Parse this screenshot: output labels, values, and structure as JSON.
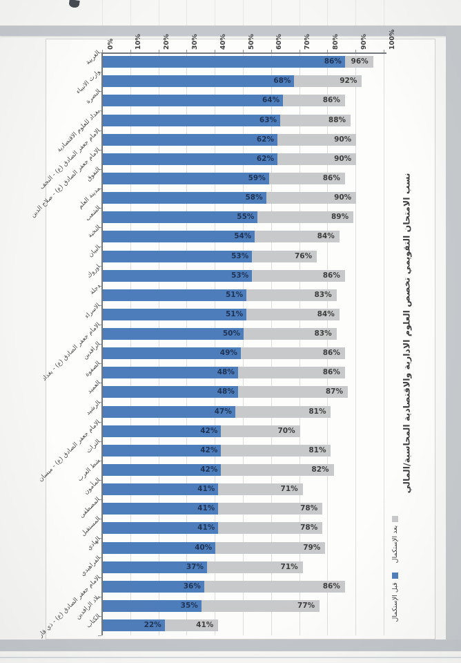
{
  "chart_data": {
    "type": "bar",
    "orientation": "horizontal-rotated-page",
    "title": "نسب الامتحان التقويمي تخصص العلوم الادارية والاقتصادية المحاسبة/المالي",
    "axis_tick_labels": [
      "0%",
      "10%",
      "20%",
      "30%",
      "40%",
      "50%",
      "60%",
      "70%",
      "80%",
      "90%",
      "100%"
    ],
    "xlim": [
      0,
      100
    ],
    "grid": true,
    "legend_position": "right-rotated",
    "legend": [
      {
        "label": "بعد الإستكمال",
        "color": "#c8c9ca"
      },
      {
        "label": "قبل الإستكمال",
        "color": "#4d7dbb"
      }
    ],
    "categories": [
      "الغربية",
      "وارث الانبياء",
      "البصرة",
      "بغداد للعلوم الاقتصادية",
      "الامام جعفر الصادق (ع) - النجف",
      "الامام جعفر الصادق (ع) - صلاح الدين",
      "التفوق",
      "مدينة العلم",
      "الشعب",
      "النخبة",
      "البيان",
      "اوروك",
      "دجلة",
      "الاسراء",
      "الامام جعفر الصادق (ع) - بغداد",
      "الرافدين",
      "الصفوة",
      "العميد",
      "الرشيد",
      "الامام جعفر الصادق (ع) - ميسان",
      "التراث",
      "شط العرب",
      "المأمون",
      "المصطفى",
      "المستقبل",
      "الهادي",
      "الفراهيدي",
      "الامام جعفر الصادق (ع) - ذي قار",
      "بلاد الرافدين",
      "الكتاب"
    ],
    "series": [
      {
        "name": "قبل الإستكمال",
        "color": "#4d7dbb",
        "values": [
          86,
          68,
          64,
          63,
          62,
          62,
          59,
          58,
          55,
          54,
          53,
          53,
          51,
          51,
          50,
          49,
          48,
          48,
          47,
          42,
          42,
          42,
          41,
          41,
          41,
          40,
          37,
          36,
          35,
          22
        ]
      },
      {
        "name": "بعد الإستكمال",
        "color": "#c8c9ca",
        "values": [
          96,
          92,
          86,
          88,
          90,
          90,
          86,
          90,
          89,
          84,
          76,
          86,
          83,
          84,
          83,
          86,
          86,
          87,
          81,
          70,
          81,
          82,
          71,
          78,
          78,
          79,
          71,
          86,
          77,
          41
        ]
      }
    ],
    "value_label_format": "percent"
  },
  "colors": {
    "bar_before": "#4d7dbb",
    "bar_after": "#c8c9ca",
    "label_before": "#1f3355",
    "label_after": "#3d3d3d",
    "axis": "#73777c",
    "gridline": "#dedede"
  }
}
